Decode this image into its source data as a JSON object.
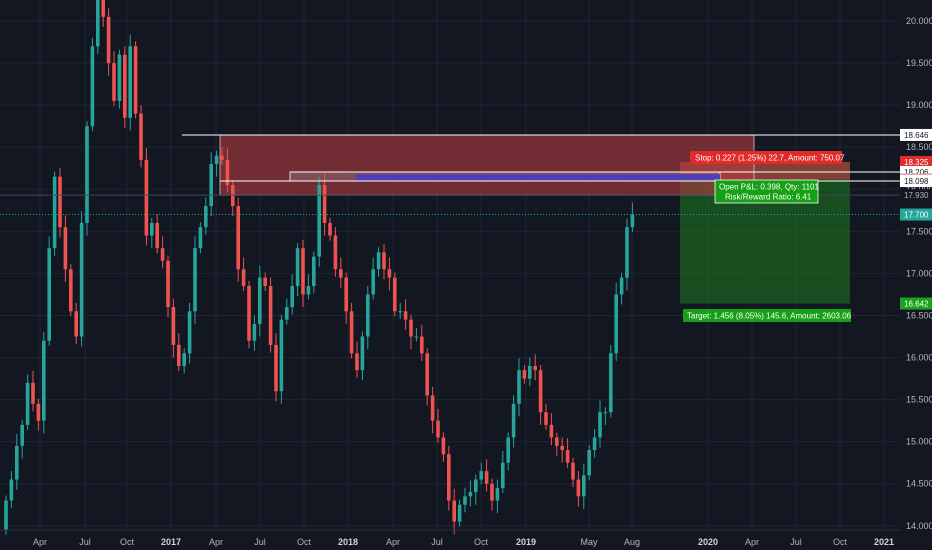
{
  "chart_data": {
    "type": "candlestick",
    "ylim": [
      13.95,
      20.25
    ],
    "y_ticks": [
      "20.000",
      "19.500",
      "19.000",
      "18.500",
      "18.000",
      "17.500",
      "17.000",
      "16.500",
      "16.000",
      "15.500",
      "15.000",
      "14.500",
      "14.000"
    ],
    "y_tick_values": [
      20.0,
      19.5,
      19.0,
      18.5,
      18.0,
      17.5,
      17.0,
      16.5,
      16.0,
      15.5,
      15.0,
      14.5,
      14.0
    ],
    "x_ticks": [
      "Apr",
      "Jul",
      "Oct",
      "2017",
      "Apr",
      "Jul",
      "Oct",
      "2018",
      "Apr",
      "Jul",
      "Oct",
      "2019",
      "May",
      "Aug",
      "2020",
      "Apr",
      "Jul",
      "Oct",
      "2021"
    ],
    "x_tick_bold": [
      false,
      false,
      false,
      true,
      false,
      false,
      false,
      true,
      false,
      false,
      false,
      true,
      false,
      false,
      true,
      false,
      false,
      false,
      true
    ],
    "grid": true,
    "candles_close": [
      14.3,
      14.55,
      14.95,
      15.2,
      15.7,
      15.45,
      15.25,
      16.2,
      17.3,
      18.15,
      17.55,
      17.05,
      16.55,
      16.25,
      17.6,
      18.75,
      19.7,
      20.25,
      20.05,
      19.5,
      19.05,
      19.6,
      18.85,
      19.7,
      18.9,
      18.35,
      17.45,
      17.6,
      17.3,
      17.15,
      16.6,
      16.15,
      15.9,
      16.05,
      16.55,
      17.3,
      17.55,
      17.8,
      18.3,
      18.4,
      18.35,
      18.05,
      17.8,
      17.05,
      16.85,
      16.2,
      16.4,
      16.95,
      16.85,
      16.15,
      15.6,
      16.45,
      16.6,
      16.85,
      17.3,
      16.75,
      16.85,
      17.2,
      18.05,
      17.6,
      17.45,
      17.05,
      16.95,
      16.55,
      16.05,
      15.85,
      16.25,
      16.75,
      17.05,
      17.25,
      17.05,
      16.95,
      16.55,
      16.55,
      16.45,
      16.25,
      16.25,
      16.05,
      15.55,
      15.25,
      15.05,
      14.85,
      14.3,
      14.05,
      14.25,
      14.35,
      14.4,
      14.55,
      14.65,
      14.5,
      14.3,
      14.45,
      14.75,
      15.05,
      15.45,
      15.85,
      15.75,
      15.9,
      15.85,
      15.35,
      15.2,
      15.05,
      14.95,
      14.9,
      14.75,
      14.55,
      14.35,
      14.6,
      14.9,
      15.05,
      15.35,
      15.35,
      16.05,
      16.75,
      16.95,
      17.55,
      17.7
    ],
    "last_price": "17.700",
    "price_badges": [
      {
        "label": "18.646",
        "bg": "#ffffff",
        "fg": "#131722"
      },
      {
        "label": "18.325",
        "bg": "#e12b2b",
        "fg": "#ffffff"
      },
      {
        "label": "18.206",
        "bg": "#ffffff",
        "fg": "#131722"
      },
      {
        "label": "18.117",
        "bg": "#e2a3a6",
        "fg": "#131722"
      },
      {
        "label": "18.098",
        "bg": "#ffffff",
        "fg": "#131722"
      },
      {
        "label": "17.930",
        "bg": "#131722",
        "fg": "#b2b5be"
      },
      {
        "label": "17.700",
        "bg": "#26a69a",
        "fg": "#ffffff"
      },
      {
        "label": "16.642",
        "bg": "#1aa31a",
        "fg": "#ffffff"
      }
    ],
    "position": {
      "stop_label": "Stop: 0.227 (1.25%) 22.7, Amount: 750.07",
      "pnl_line1": "Open P&L: 0.398, Qty: 1101",
      "pnl_line2": "Risk/Reward Ratio: 6.41",
      "target_label": "Target: 1.456 (8.05%) 145.6, Amount: 2603.06"
    },
    "colors": {
      "background": "#131722",
      "up": "#26a69a",
      "down": "#ef5350",
      "grid": "#1f2433",
      "stop_fill": "#b23a3f",
      "target_fill": "#1e7a1e",
      "stop_badge": "#e12b2b",
      "target_badge": "#16a016",
      "blue_band": "#4f3fb5",
      "last_price_line": "#26a69a"
    }
  }
}
